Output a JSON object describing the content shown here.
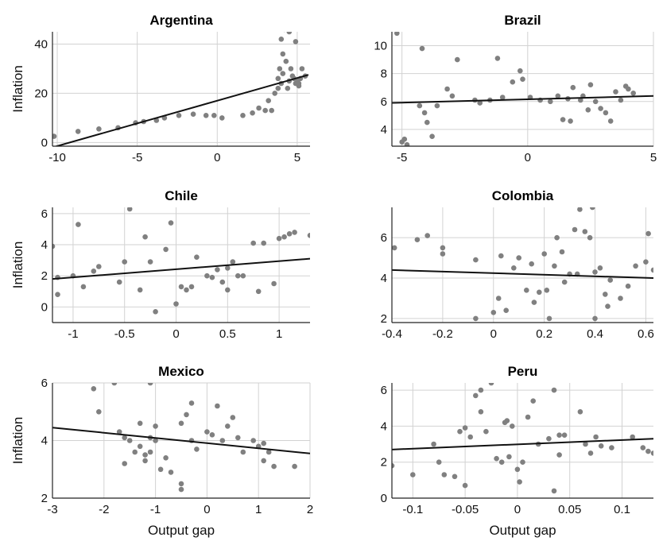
{
  "chart_data": [
    {
      "type": "scatter",
      "title": "Argentina",
      "xlabel": "",
      "ylabel": "Inflation",
      "xlim": [
        -10.3,
        5.8
      ],
      "ylim": [
        -1.5,
        45
      ],
      "xticks": [
        "-10",
        "-5",
        "0",
        "5"
      ],
      "xtick_values": [
        -10,
        -5,
        0,
        5
      ],
      "yticks": [
        "0",
        "20",
        "40"
      ],
      "ytick_values": [
        0,
        20,
        40
      ],
      "grid": true,
      "fit_line": [
        [
          -10.3,
          -2
        ],
        [
          5.7,
          27.5
        ]
      ],
      "points": [
        [
          -10.2,
          2.5
        ],
        [
          -8.7,
          4.5
        ],
        [
          -7.4,
          5.5
        ],
        [
          -6.2,
          6
        ],
        [
          -5.1,
          8
        ],
        [
          -4.6,
          8.5
        ],
        [
          -3.8,
          9
        ],
        [
          -3.3,
          10
        ],
        [
          -2.4,
          11
        ],
        [
          -1.5,
          11.5
        ],
        [
          -0.7,
          11
        ],
        [
          -0.2,
          11
        ],
        [
          0.3,
          10
        ],
        [
          1.6,
          11
        ],
        [
          2.2,
          12
        ],
        [
          2.6,
          14
        ],
        [
          3.0,
          13
        ],
        [
          3.2,
          17
        ],
        [
          3.4,
          13
        ],
        [
          3.6,
          20
        ],
        [
          3.8,
          22
        ],
        [
          3.8,
          26
        ],
        [
          3.9,
          30
        ],
        [
          4.0,
          24
        ],
        [
          4.1,
          28
        ],
        [
          4.0,
          42
        ],
        [
          4.1,
          36
        ],
        [
          4.2,
          46
        ],
        [
          4.3,
          33
        ],
        [
          4.4,
          22
        ],
        [
          4.5,
          45
        ],
        [
          4.5,
          25
        ],
        [
          4.6,
          30
        ],
        [
          4.7,
          27
        ],
        [
          4.8,
          26
        ],
        [
          4.9,
          41
        ],
        [
          5.0,
          25
        ],
        [
          5.1,
          24
        ],
        [
          5.2,
          26
        ],
        [
          5.3,
          30
        ],
        [
          5.5,
          27
        ],
        [
          4.9,
          24
        ],
        [
          5.1,
          23
        ]
      ]
    },
    {
      "type": "scatter",
      "title": "Brazil",
      "xlabel": "",
      "ylabel": "",
      "xlim": [
        -5.4,
        5
      ],
      "ylim": [
        2.8,
        11
      ],
      "xticks": [
        "-5",
        "0",
        "5"
      ],
      "xtick_values": [
        -5,
        0,
        5
      ],
      "yticks": [
        "4",
        "6",
        "8",
        "10"
      ],
      "ytick_values": [
        4,
        6,
        8,
        10
      ],
      "grid": true,
      "fit_line": [
        [
          -5.4,
          5.9
        ],
        [
          5,
          6.4
        ]
      ],
      "points": [
        [
          -5.2,
          10.9
        ],
        [
          -5.0,
          3.1
        ],
        [
          -4.8,
          2.9
        ],
        [
          -4.9,
          3.3
        ],
        [
          -4.2,
          9.8
        ],
        [
          -4.3,
          5.7
        ],
        [
          -4.1,
          5.2
        ],
        [
          -4.0,
          4.5
        ],
        [
          -3.8,
          3.5
        ],
        [
          -3.6,
          5.7
        ],
        [
          -3.2,
          6.9
        ],
        [
          -3.0,
          6.4
        ],
        [
          -2.8,
          9.0
        ],
        [
          -2.1,
          6.1
        ],
        [
          -1.9,
          5.9
        ],
        [
          -1.5,
          6.1
        ],
        [
          -1.2,
          9.1
        ],
        [
          -1.0,
          6.3
        ],
        [
          -0.6,
          7.4
        ],
        [
          -0.3,
          8.2
        ],
        [
          -0.2,
          7.6
        ],
        [
          0.1,
          6.3
        ],
        [
          0.5,
          6.1
        ],
        [
          0.9,
          6.0
        ],
        [
          1.2,
          6.4
        ],
        [
          1.4,
          4.7
        ],
        [
          1.6,
          6.2
        ],
        [
          1.7,
          4.6
        ],
        [
          1.8,
          7.0
        ],
        [
          2.1,
          6.1
        ],
        [
          2.2,
          6.4
        ],
        [
          2.4,
          5.4
        ],
        [
          2.5,
          7.2
        ],
        [
          2.7,
          6.0
        ],
        [
          2.9,
          5.5
        ],
        [
          3.1,
          5.2
        ],
        [
          3.3,
          4.6
        ],
        [
          3.5,
          6.7
        ],
        [
          3.7,
          6.1
        ],
        [
          3.9,
          7.1
        ],
        [
          4.0,
          6.9
        ],
        [
          4.2,
          6.6
        ]
      ]
    },
    {
      "type": "scatter",
      "title": "Chile",
      "xlabel": "",
      "ylabel": "Inflation",
      "xlim": [
        -1.2,
        1.3
      ],
      "ylim": [
        -1,
        6.4
      ],
      "xticks": [
        "-1",
        "-0.5",
        "0",
        "0.5",
        "1"
      ],
      "xtick_values": [
        -1,
        -0.5,
        0,
        0.5,
        1
      ],
      "yticks": [
        "0",
        "2",
        "4",
        "6"
      ],
      "ytick_values": [
        0,
        2,
        4,
        6
      ],
      "grid": true,
      "fit_line": [
        [
          -1.2,
          1.8
        ],
        [
          1.3,
          3.1
        ]
      ],
      "points": [
        [
          -1.2,
          3.9
        ],
        [
          -1.15,
          1.9
        ],
        [
          -1.15,
          0.8
        ],
        [
          -1.0,
          2.0
        ],
        [
          -0.95,
          5.3
        ],
        [
          -0.9,
          1.3
        ],
        [
          -0.8,
          2.3
        ],
        [
          -0.75,
          2.6
        ],
        [
          -0.5,
          2.9
        ],
        [
          -0.55,
          1.6
        ],
        [
          -0.45,
          6.3
        ],
        [
          -0.35,
          1.1
        ],
        [
          -0.3,
          4.5
        ],
        [
          -0.25,
          2.9
        ],
        [
          -0.2,
          -0.3
        ],
        [
          -0.1,
          3.7
        ],
        [
          -0.05,
          5.4
        ],
        [
          0.0,
          0.2
        ],
        [
          0.05,
          1.3
        ],
        [
          0.1,
          1.1
        ],
        [
          0.15,
          1.3
        ],
        [
          0.2,
          3.2
        ],
        [
          0.3,
          2.0
        ],
        [
          0.35,
          1.9
        ],
        [
          0.4,
          2.4
        ],
        [
          0.45,
          1.6
        ],
        [
          0.5,
          2.5
        ],
        [
          0.5,
          1.1
        ],
        [
          0.55,
          2.9
        ],
        [
          0.6,
          2.0
        ],
        [
          0.65,
          2.0
        ],
        [
          0.75,
          4.1
        ],
        [
          0.8,
          1.0
        ],
        [
          0.85,
          4.1
        ],
        [
          0.95,
          1.5
        ],
        [
          1.0,
          4.4
        ],
        [
          1.05,
          4.5
        ],
        [
          1.1,
          4.7
        ],
        [
          1.15,
          4.8
        ],
        [
          1.3,
          4.6
        ]
      ]
    },
    {
      "type": "scatter",
      "title": "Colombia",
      "xlabel": "",
      "ylabel": "",
      "xlim": [
        -0.4,
        0.63
      ],
      "ylim": [
        1.8,
        7.5
      ],
      "xticks": [
        "-0.4",
        "-0.2",
        "0",
        "0.2",
        "0.4",
        "0.6"
      ],
      "xtick_values": [
        -0.4,
        -0.2,
        0,
        0.2,
        0.4,
        0.6
      ],
      "yticks": [
        "2",
        "4",
        "6"
      ],
      "ytick_values": [
        2,
        4,
        6
      ],
      "grid": true,
      "fit_line": [
        [
          -0.4,
          4.4
        ],
        [
          0.63,
          4.0
        ]
      ],
      "points": [
        [
          -0.39,
          5.5
        ],
        [
          -0.3,
          5.9
        ],
        [
          -0.26,
          6.1
        ],
        [
          -0.2,
          5.5
        ],
        [
          -0.2,
          5.2
        ],
        [
          -0.07,
          4.9
        ],
        [
          -0.07,
          2.0
        ],
        [
          0.0,
          2.3
        ],
        [
          0.02,
          3.0
        ],
        [
          0.03,
          5.1
        ],
        [
          0.05,
          2.4
        ],
        [
          0.08,
          4.5
        ],
        [
          0.1,
          5.0
        ],
        [
          0.13,
          3.4
        ],
        [
          0.15,
          4.7
        ],
        [
          0.16,
          2.8
        ],
        [
          0.18,
          3.3
        ],
        [
          0.2,
          5.2
        ],
        [
          0.21,
          3.4
        ],
        [
          0.22,
          2.0
        ],
        [
          0.24,
          4.6
        ],
        [
          0.25,
          6.0
        ],
        [
          0.27,
          5.3
        ],
        [
          0.28,
          3.8
        ],
        [
          0.3,
          4.2
        ],
        [
          0.32,
          6.4
        ],
        [
          0.33,
          4.2
        ],
        [
          0.34,
          7.4
        ],
        [
          0.36,
          6.3
        ],
        [
          0.38,
          6.0
        ],
        [
          0.39,
          7.5
        ],
        [
          0.4,
          4.3
        ],
        [
          0.42,
          4.5
        ],
        [
          0.44,
          3.2
        ],
        [
          0.45,
          2.6
        ],
        [
          0.46,
          3.9
        ],
        [
          0.5,
          3.0
        ],
        [
          0.53,
          3.6
        ],
        [
          0.56,
          4.6
        ],
        [
          0.6,
          4.8
        ],
        [
          0.61,
          6.2
        ],
        [
          0.63,
          4.4
        ],
        [
          0.4,
          2.0
        ]
      ]
    },
    {
      "type": "scatter",
      "title": "Mexico",
      "xlabel": "Output gap",
      "ylabel": "Inflation",
      "xlim": [
        -3,
        2
      ],
      "ylim": [
        2,
        6
      ],
      "xticks": [
        "-3",
        "-2",
        "-1",
        "0",
        "1",
        "2"
      ],
      "xtick_values": [
        -3,
        -2,
        -1,
        0,
        1,
        2
      ],
      "yticks": [
        "2",
        "4",
        "6"
      ],
      "ytick_values": [
        2,
        4,
        6
      ],
      "grid": true,
      "fit_line": [
        [
          -3,
          4.45
        ],
        [
          2,
          3.55
        ]
      ],
      "points": [
        [
          -2.2,
          5.8
        ],
        [
          -2.1,
          5.0
        ],
        [
          -1.8,
          6.0
        ],
        [
          -1.7,
          4.3
        ],
        [
          -1.6,
          4.1
        ],
        [
          -1.5,
          4.0
        ],
        [
          -1.6,
          3.2
        ],
        [
          -1.4,
          3.6
        ],
        [
          -1.3,
          3.8
        ],
        [
          -1.3,
          4.6
        ],
        [
          -1.2,
          3.5
        ],
        [
          -1.2,
          3.3
        ],
        [
          -1.1,
          3.6
        ],
        [
          -1.1,
          4.1
        ],
        [
          -1.0,
          4.0
        ],
        [
          -1.0,
          4.5
        ],
        [
          -0.9,
          3.0
        ],
        [
          -0.8,
          3.4
        ],
        [
          -0.7,
          2.9
        ],
        [
          -0.5,
          2.3
        ],
        [
          -0.5,
          2.5
        ],
        [
          -0.5,
          4.6
        ],
        [
          -0.4,
          4.9
        ],
        [
          -0.3,
          5.3
        ],
        [
          -0.3,
          4.0
        ],
        [
          -0.2,
          3.7
        ],
        [
          0.0,
          4.3
        ],
        [
          0.1,
          4.2
        ],
        [
          0.2,
          5.2
        ],
        [
          0.3,
          4.0
        ],
        [
          0.4,
          4.5
        ],
        [
          0.5,
          4.8
        ],
        [
          0.6,
          4.1
        ],
        [
          0.7,
          3.6
        ],
        [
          0.9,
          4.0
        ],
        [
          1.0,
          3.8
        ],
        [
          1.1,
          3.9
        ],
        [
          1.1,
          3.3
        ],
        [
          1.2,
          3.6
        ],
        [
          1.3,
          3.1
        ],
        [
          1.7,
          3.1
        ],
        [
          -1.1,
          6.0
        ]
      ]
    },
    {
      "type": "scatter",
      "title": "Peru",
      "xlabel": "Output gap",
      "ylabel": "",
      "xlim": [
        -0.12,
        0.13
      ],
      "ylim": [
        0,
        6.4
      ],
      "xticks": [
        "-0.1",
        "-0.05",
        "0",
        "0.05",
        "0.1"
      ],
      "xtick_values": [
        -0.1,
        -0.05,
        0,
        0.05,
        0.1
      ],
      "yticks": [
        "0",
        "2",
        "4",
        "6"
      ],
      "ytick_values": [
        0,
        2,
        4,
        6
      ],
      "grid": true,
      "fit_line": [
        [
          -0.12,
          2.7
        ],
        [
          0.13,
          3.3
        ]
      ],
      "points": [
        [
          -0.12,
          1.8
        ],
        [
          -0.1,
          1.3
        ],
        [
          -0.08,
          3.0
        ],
        [
          -0.075,
          2.0
        ],
        [
          -0.07,
          1.3
        ],
        [
          -0.06,
          1.2
        ],
        [
          -0.055,
          3.7
        ],
        [
          -0.05,
          3.9
        ],
        [
          -0.05,
          0.7
        ],
        [
          -0.045,
          3.4
        ],
        [
          -0.04,
          5.7
        ],
        [
          -0.035,
          4.8
        ],
        [
          -0.03,
          3.7
        ],
        [
          -0.025,
          6.4
        ],
        [
          -0.02,
          2.2
        ],
        [
          -0.015,
          2.0
        ],
        [
          -0.012,
          4.2
        ],
        [
          -0.01,
          4.3
        ],
        [
          -0.008,
          2.3
        ],
        [
          -0.005,
          4.0
        ],
        [
          0.0,
          1.6
        ],
        [
          0.002,
          0.9
        ],
        [
          0.005,
          2.0
        ],
        [
          0.01,
          4.5
        ],
        [
          0.015,
          5.4
        ],
        [
          0.02,
          3.0
        ],
        [
          0.03,
          3.3
        ],
        [
          0.035,
          0.4
        ],
        [
          0.04,
          2.4
        ],
        [
          0.04,
          3.5
        ],
        [
          0.045,
          3.5
        ],
        [
          0.06,
          4.8
        ],
        [
          0.065,
          3.0
        ],
        [
          0.07,
          2.5
        ],
        [
          0.075,
          3.4
        ],
        [
          0.08,
          2.9
        ],
        [
          0.09,
          2.8
        ],
        [
          0.11,
          3.4
        ],
        [
          0.12,
          2.8
        ],
        [
          0.125,
          2.6
        ],
        [
          0.13,
          2.5
        ],
        [
          -0.035,
          6.0
        ],
        [
          0.035,
          6.0
        ]
      ]
    }
  ]
}
